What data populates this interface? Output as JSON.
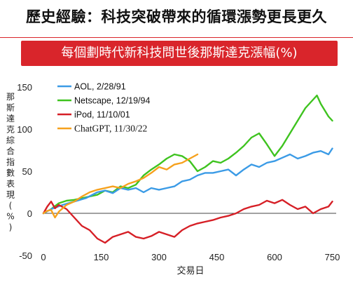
{
  "title": "歷史經驗：科技突破帶來的循環漲勢更長更久",
  "subtitle": "每個劃時代新科技問世後那斯達克漲幅(%)",
  "chart_data": {
    "type": "line",
    "xlabel": "交易日",
    "ylabel": "那斯達克綜合指數表現(%)",
    "xlim": [
      0,
      760
    ],
    "ylim": [
      -50,
      160
    ],
    "xticks": [
      0,
      150,
      300,
      450,
      600,
      750
    ],
    "yticks": [
      -50,
      0,
      50,
      100,
      150
    ],
    "legend_position": "top-left",
    "series": [
      {
        "name": "AOL, 2/28/91",
        "color": "#3b9be6",
        "x": [
          0,
          20,
          50,
          80,
          110,
          140,
          160,
          180,
          200,
          220,
          240,
          260,
          280,
          300,
          320,
          340,
          360,
          380,
          400,
          420,
          440,
          460,
          480,
          500,
          520,
          540,
          560,
          580,
          600,
          620,
          640,
          660,
          680,
          700,
          720,
          740,
          750
        ],
        "values": [
          0,
          5,
          10,
          14,
          18,
          25,
          27,
          24,
          30,
          28,
          30,
          25,
          30,
          28,
          30,
          32,
          38,
          40,
          45,
          48,
          48,
          50,
          52,
          45,
          52,
          58,
          55,
          60,
          62,
          66,
          70,
          65,
          68,
          72,
          74,
          70,
          77
        ]
      },
      {
        "name": "Netscape, 12/19/94",
        "color": "#3ec31f",
        "x": [
          0,
          20,
          40,
          60,
          80,
          100,
          120,
          140,
          160,
          180,
          200,
          220,
          240,
          260,
          280,
          300,
          320,
          340,
          360,
          380,
          400,
          420,
          440,
          460,
          480,
          500,
          520,
          540,
          560,
          580,
          600,
          620,
          640,
          660,
          680,
          700,
          710,
          720,
          740,
          750
        ],
        "values": [
          0,
          5,
          12,
          15,
          16,
          18,
          20,
          22,
          27,
          25,
          32,
          30,
          34,
          45,
          52,
          58,
          65,
          70,
          68,
          62,
          50,
          55,
          62,
          60,
          65,
          72,
          80,
          90,
          95,
          82,
          68,
          80,
          95,
          110,
          125,
          135,
          140,
          130,
          115,
          110
        ]
      },
      {
        "name": "iPod, 11/10/01",
        "color": "#d61f26",
        "x": [
          0,
          10,
          20,
          30,
          40,
          60,
          80,
          100,
          120,
          140,
          160,
          180,
          200,
          220,
          240,
          260,
          280,
          300,
          320,
          340,
          360,
          380,
          400,
          420,
          440,
          460,
          480,
          500,
          520,
          540,
          560,
          580,
          600,
          620,
          640,
          660,
          680,
          700,
          720,
          740,
          750
        ],
        "values": [
          0,
          8,
          14,
          6,
          10,
          5,
          -5,
          -15,
          -20,
          -30,
          -35,
          -28,
          -25,
          -22,
          -28,
          -30,
          -27,
          -22,
          -25,
          -28,
          -20,
          -15,
          -12,
          -10,
          -8,
          -5,
          -3,
          0,
          5,
          8,
          10,
          15,
          12,
          16,
          10,
          5,
          8,
          0,
          5,
          8,
          14
        ]
      },
      {
        "name": "ChatGPT, 11/30/22",
        "color": "#f6a11d",
        "x": [
          0,
          10,
          20,
          30,
          40,
          50,
          60,
          80,
          100,
          120,
          140,
          160,
          180,
          200,
          220,
          240,
          260,
          280,
          300,
          320,
          340,
          360,
          380,
          400
        ],
        "values": [
          0,
          3,
          4,
          -5,
          2,
          6,
          10,
          14,
          20,
          25,
          28,
          30,
          32,
          30,
          35,
          38,
          42,
          48,
          55,
          52,
          58,
          60,
          65,
          70
        ]
      }
    ]
  }
}
